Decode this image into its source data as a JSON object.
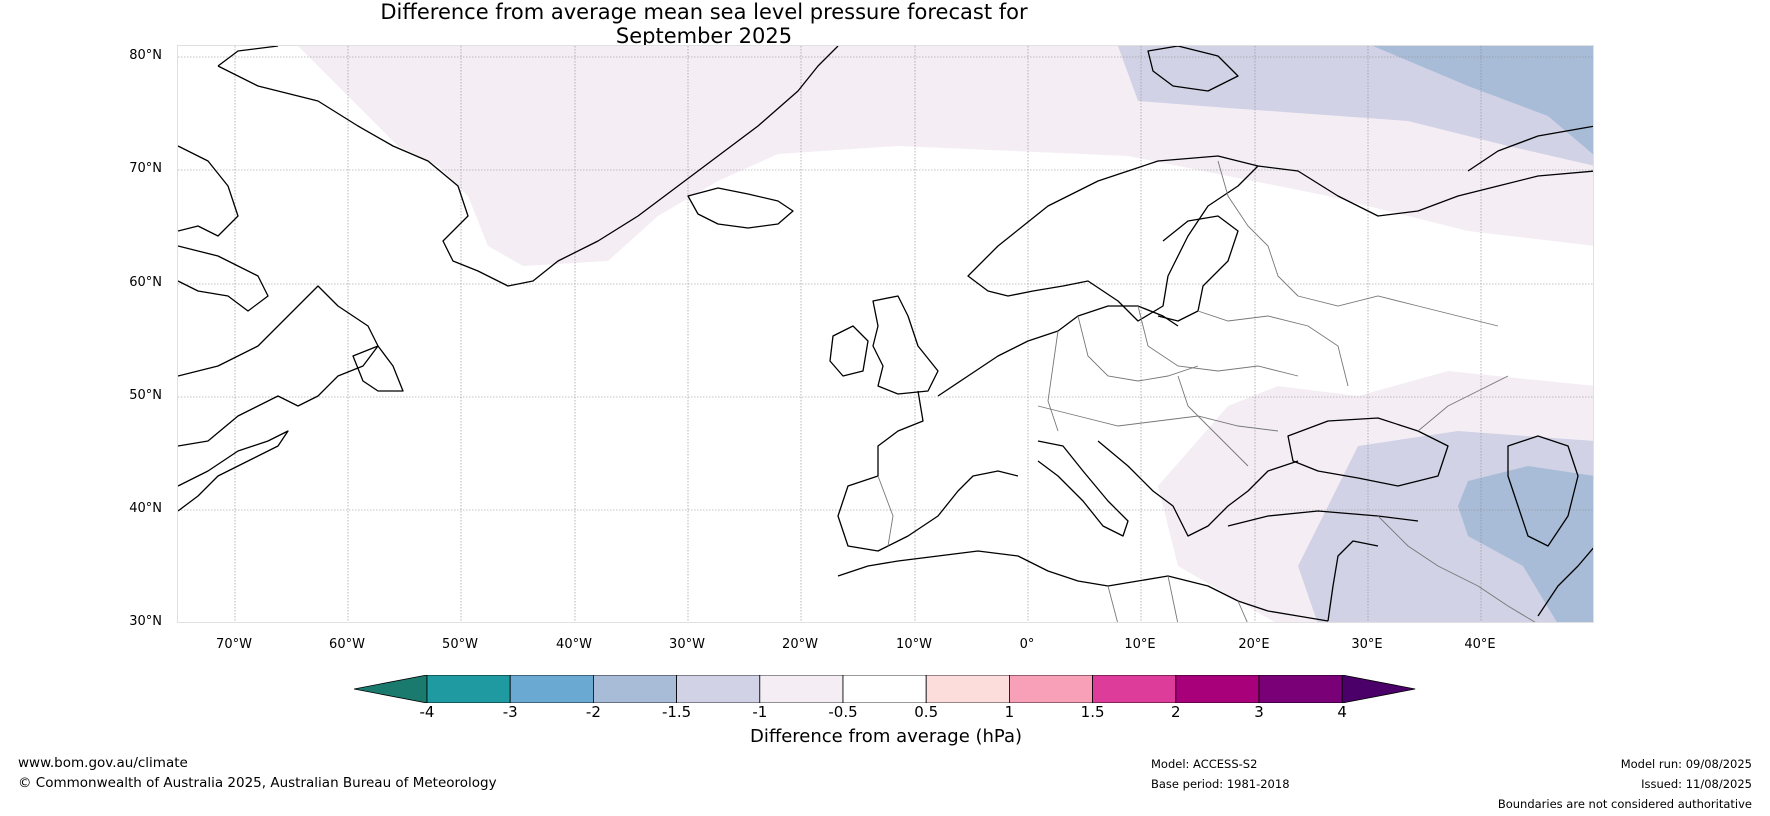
{
  "title": {
    "line1": "Difference from average mean sea level pressure forecast for",
    "line2": "September 2025"
  },
  "map": {
    "lat_labels": [
      "80°N",
      "70°N",
      "60°N",
      "50°N",
      "40°N",
      "30°N"
    ],
    "lon_labels": [
      "70°W",
      "60°W",
      "50°W",
      "40°W",
      "30°W",
      "20°W",
      "10°W",
      "0°",
      "10°E",
      "20°E",
      "30°E",
      "40°E"
    ],
    "extent": {
      "lon": [
        -75,
        50
      ],
      "lat": [
        30,
        81
      ]
    }
  },
  "colorbar": {
    "ticks": [
      "-4",
      "-3",
      "-2",
      "-1.5",
      "-1",
      "-0.5",
      "0.5",
      "1",
      "1.5",
      "2",
      "3",
      "4"
    ],
    "colors": [
      "#1a7a6e",
      "#1f9aa0",
      "#6aaad2",
      "#a8bcd8",
      "#d2d2e6",
      "#f4eef4",
      "#ffffff",
      "#fddcdc",
      "#f8a0b8",
      "#de3c9a",
      "#a8007a",
      "#7a0078",
      "#4a0068"
    ],
    "label": "Difference from average (hPa)"
  },
  "footer": {
    "website": "www.bom.gov.au/climate",
    "copyright": "© Commonwealth of Australia 2025, Australian Bureau of Meteorology",
    "model": "Model: ACCESS-S2",
    "base_period": "Base period: 1981-2018",
    "model_run": "Model run: 09/08/2025",
    "issued": "Issued: 11/08/2025",
    "disclaimer": "Boundaries are not considered authoritative"
  }
}
